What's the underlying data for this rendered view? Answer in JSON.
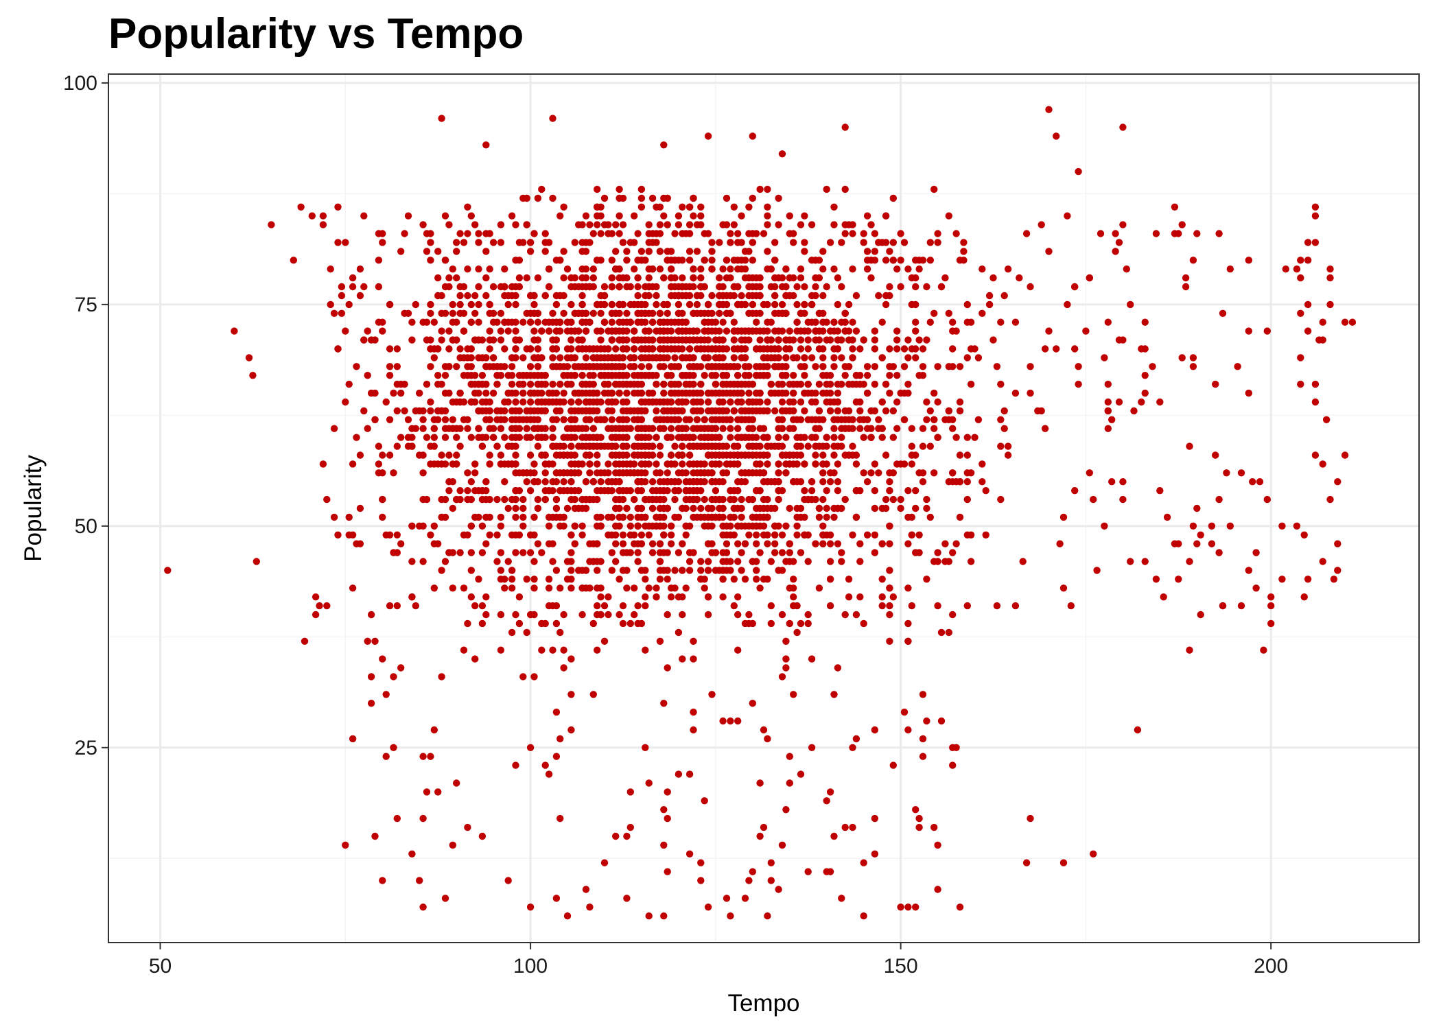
{
  "colors": {
    "point": "#c00000",
    "grid_major": "#ebebeb",
    "grid_minor": "#f4f4f4",
    "panel_border": "#333333",
    "background": "#ffffff"
  },
  "chart_data": {
    "type": "scatter",
    "title": "Popularity vs Tempo",
    "xlabel": "Tempo",
    "ylabel": "Popularity",
    "xlim": [
      43,
      220
    ],
    "ylim": [
      3,
      101
    ],
    "xticks": [
      50,
      100,
      150,
      200
    ],
    "yticks": [
      25,
      50,
      75,
      100
    ],
    "x_tick_labels": [
      "50",
      "100",
      "150",
      "200"
    ],
    "y_tick_labels": [
      "25",
      "50",
      "75",
      "100"
    ],
    "grid": true,
    "legend": "none",
    "distribution": {
      "note_points_dense_core": "Main cluster roughly tempo 78-160, popularity 40-88; densest around tempo 95-140, popularity 55-75",
      "generator_seed": 7
    },
    "series": [
      {
        "values_sample_outliers": [
          [
            51,
            45
          ],
          [
            60,
            72
          ],
          [
            62,
            69
          ],
          [
            62.5,
            67
          ],
          [
            63,
            46
          ],
          [
            65,
            84
          ],
          [
            68,
            80
          ],
          [
            69,
            86
          ],
          [
            69.5,
            37
          ],
          [
            71,
            42
          ],
          [
            72,
            85
          ],
          [
            72.5,
            41
          ],
          [
            75,
            14
          ],
          [
            76,
            26
          ],
          [
            80,
            10
          ],
          [
            88,
            96
          ],
          [
            94,
            93
          ],
          [
            100,
            7
          ],
          [
            103,
            96
          ],
          [
            105,
            6
          ],
          [
            108,
            7
          ],
          [
            113,
            8
          ],
          [
            116,
            6
          ],
          [
            118,
            93
          ],
          [
            124,
            94
          ],
          [
            127,
            6
          ],
          [
            130,
            94
          ],
          [
            131,
            15
          ],
          [
            132,
            6
          ],
          [
            134,
            92
          ],
          [
            142,
            8
          ],
          [
            142.5,
            95
          ],
          [
            145,
            6
          ],
          [
            150,
            7
          ],
          [
            152,
            7
          ],
          [
            155,
            9
          ],
          [
            158,
            7
          ],
          [
            167,
            12
          ],
          [
            167.5,
            17
          ],
          [
            170,
            97
          ],
          [
            171,
            94
          ],
          [
            172,
            12
          ],
          [
            174,
            90
          ],
          [
            176,
            13
          ],
          [
            180,
            95
          ],
          [
            182,
            27
          ],
          [
            189,
            36
          ],
          [
            193,
            83
          ],
          [
            197,
            80
          ],
          [
            199,
            36
          ],
          [
            200,
            39
          ],
          [
            205,
            82
          ],
          [
            205,
            44
          ],
          [
            206,
            64
          ],
          [
            207,
            71
          ],
          [
            208,
            75
          ],
          [
            211,
            73
          ],
          [
            210,
            58
          ]
        ]
      }
    ]
  }
}
